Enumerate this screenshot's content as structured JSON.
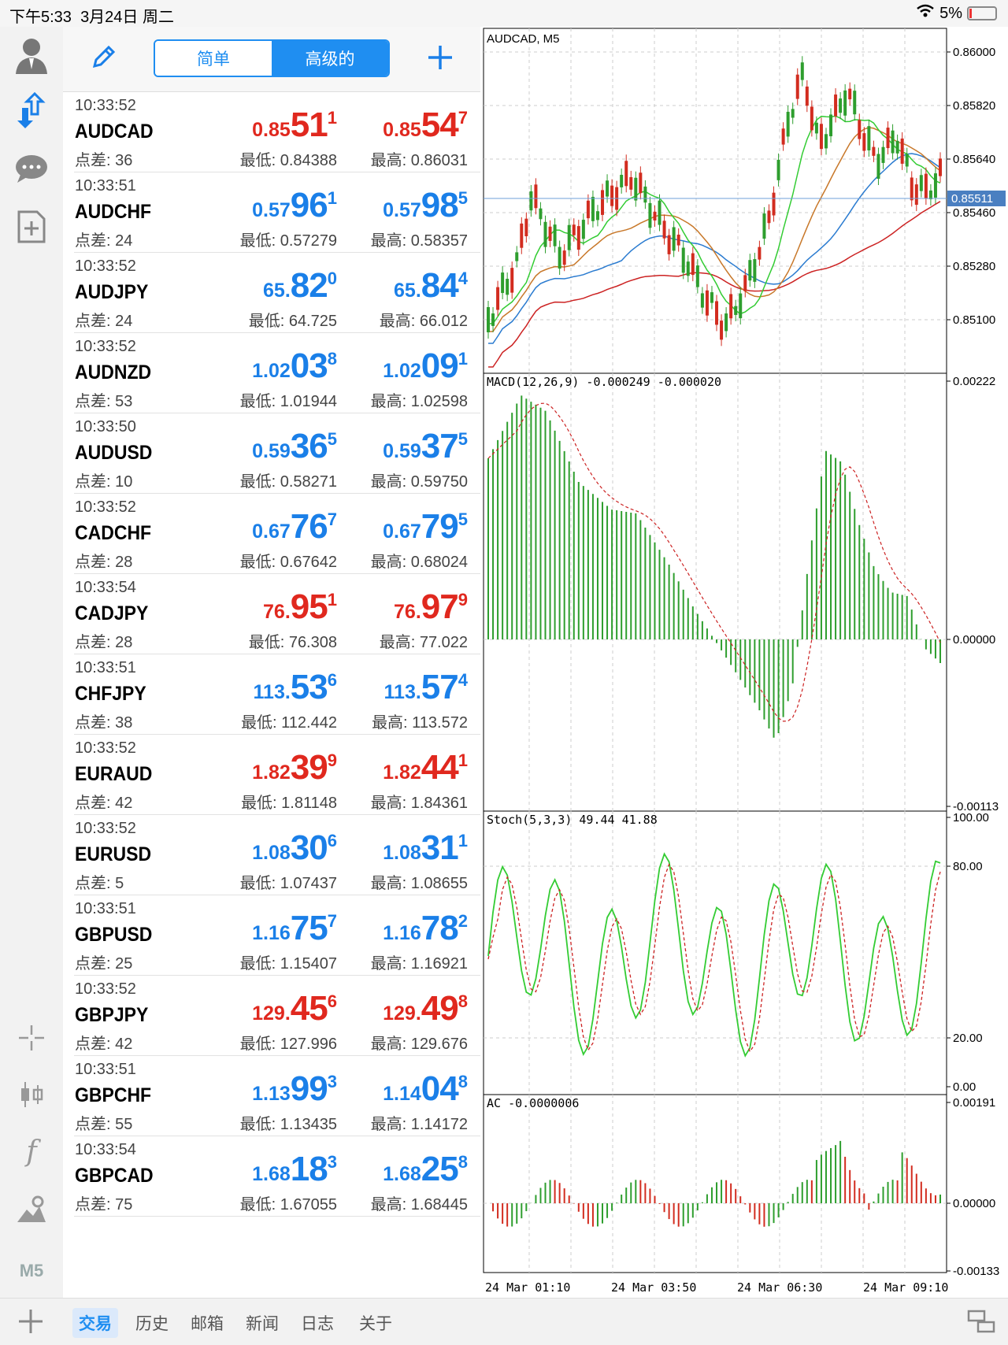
{
  "status_bar": {
    "time": "下午5:33",
    "date": "3月24日 周二",
    "battery": "5%"
  },
  "toolbar": {
    "segment_simple": "简单",
    "segment_advanced": "高级的"
  },
  "quotes": [
    {
      "time": "10:33:52",
      "symbol": "AUDCAD",
      "spread": "点差: 36",
      "bid": {
        "s": "0.85",
        "b": "51",
        "p": "1"
      },
      "ask": {
        "s": "0.85",
        "b": "54",
        "p": "7"
      },
      "low": "最低: 0.84388",
      "high": "最高: 0.86031",
      "color": "red"
    },
    {
      "time": "10:33:51",
      "symbol": "AUDCHF",
      "spread": "点差: 24",
      "bid": {
        "s": "0.57",
        "b": "96",
        "p": "1"
      },
      "ask": {
        "s": "0.57",
        "b": "98",
        "p": "5"
      },
      "low": "最低: 0.57279",
      "high": "最高: 0.58357",
      "color": "blue"
    },
    {
      "time": "10:33:52",
      "symbol": "AUDJPY",
      "spread": "点差: 24",
      "bid": {
        "s": "65.",
        "b": "82",
        "p": "0"
      },
      "ask": {
        "s": "65.",
        "b": "84",
        "p": "4"
      },
      "low": "最低: 64.725",
      "high": "最高: 66.012",
      "color": "blue"
    },
    {
      "time": "10:33:52",
      "symbol": "AUDNZD",
      "spread": "点差: 53",
      "bid": {
        "s": "1.02",
        "b": "03",
        "p": "8"
      },
      "ask": {
        "s": "1.02",
        "b": "09",
        "p": "1"
      },
      "low": "最低: 1.01944",
      "high": "最高: 1.02598",
      "color": "blue"
    },
    {
      "time": "10:33:50",
      "symbol": "AUDUSD",
      "spread": "点差: 10",
      "bid": {
        "s": "0.59",
        "b": "36",
        "p": "5"
      },
      "ask": {
        "s": "0.59",
        "b": "37",
        "p": "5"
      },
      "low": "最低: 0.58271",
      "high": "最高: 0.59750",
      "color": "blue"
    },
    {
      "time": "10:33:52",
      "symbol": "CADCHF",
      "spread": "点差: 28",
      "bid": {
        "s": "0.67",
        "b": "76",
        "p": "7"
      },
      "ask": {
        "s": "0.67",
        "b": "79",
        "p": "5"
      },
      "low": "最低: 0.67642",
      "high": "最高: 0.68024",
      "color": "blue"
    },
    {
      "time": "10:33:54",
      "symbol": "CADJPY",
      "spread": "点差: 28",
      "bid": {
        "s": "76.",
        "b": "95",
        "p": "1"
      },
      "ask": {
        "s": "76.",
        "b": "97",
        "p": "9"
      },
      "low": "最低: 76.308",
      "high": "最高: 77.022",
      "color": "red"
    },
    {
      "time": "10:33:51",
      "symbol": "CHFJPY",
      "spread": "点差: 38",
      "bid": {
        "s": "113.",
        "b": "53",
        "p": "6"
      },
      "ask": {
        "s": "113.",
        "b": "57",
        "p": "4"
      },
      "low": "最低: 112.442",
      "high": "最高: 113.572",
      "color": "blue"
    },
    {
      "time": "10:33:52",
      "symbol": "EURAUD",
      "spread": "点差: 42",
      "bid": {
        "s": "1.82",
        "b": "39",
        "p": "9"
      },
      "ask": {
        "s": "1.82",
        "b": "44",
        "p": "1"
      },
      "low": "最低: 1.81148",
      "high": "最高: 1.84361",
      "color": "red"
    },
    {
      "time": "10:33:52",
      "symbol": "EURUSD",
      "spread": "点差: 5",
      "bid": {
        "s": "1.08",
        "b": "30",
        "p": "6"
      },
      "ask": {
        "s": "1.08",
        "b": "31",
        "p": "1"
      },
      "low": "最低: 1.07437",
      "high": "最高: 1.08655",
      "color": "blue"
    },
    {
      "time": "10:33:51",
      "symbol": "GBPUSD",
      "spread": "点差: 25",
      "bid": {
        "s": "1.16",
        "b": "75",
        "p": "7"
      },
      "ask": {
        "s": "1.16",
        "b": "78",
        "p": "2"
      },
      "low": "最低: 1.15407",
      "high": "最高: 1.16921",
      "color": "blue"
    },
    {
      "time": "10:33:52",
      "symbol": "GBPJPY",
      "spread": "点差: 42",
      "bid": {
        "s": "129.",
        "b": "45",
        "p": "6"
      },
      "ask": {
        "s": "129.",
        "b": "49",
        "p": "8"
      },
      "low": "最低: 127.996",
      "high": "最高: 129.676",
      "color": "red"
    },
    {
      "time": "10:33:51",
      "symbol": "GBPCHF",
      "spread": "点差: 55",
      "bid": {
        "s": "1.13",
        "b": "99",
        "p": "3"
      },
      "ask": {
        "s": "1.14",
        "b": "04",
        "p": "8"
      },
      "low": "最低: 1.13435",
      "high": "最高: 1.14172",
      "color": "blue"
    },
    {
      "time": "10:33:54",
      "symbol": "GBPCAD",
      "spread": "点差: 75",
      "bid": {
        "s": "1.68",
        "b": "18",
        "p": "3"
      },
      "ask": {
        "s": "1.68",
        "b": "25",
        "p": "8"
      },
      "low": "最低: 1.67055",
      "high": "最高: 1.68445",
      "color": "blue"
    }
  ],
  "chart": {
    "symbol_label": "AUDCAD, M5",
    "current_price": "0.85511",
    "price_ticks": [
      "0.86000",
      "0.85820",
      "0.85640",
      "0.85460",
      "0.85280",
      "0.85100"
    ],
    "macd_label": "MACD(12,26,9) -0.000249 -0.000020",
    "macd_ticks": [
      "0.00222",
      "0.00000",
      "-0.00113"
    ],
    "stoch_label": "Stoch(5,3,3) 49.44 41.88",
    "stoch_ticks": [
      "100.00",
      "80.00",
      "20.00",
      "0.00"
    ],
    "ac_label": "AC -0.0000006",
    "ac_ticks": [
      "0.00191",
      "0.00000",
      "-0.00133"
    ],
    "time_labels": [
      "24 Mar 01:10",
      "24 Mar 03:50",
      "24 Mar 06:30",
      "24 Mar 09:10"
    ],
    "colors": {
      "bull": "#2e9e2e",
      "bear": "#d22c1f",
      "ma_fast": "#33cc33",
      "ma_mid": "#c8782a",
      "ma_slow": "#2a7bd0",
      "ma_long": "#cc2222",
      "bid_line": "#6f9fd8"
    }
  },
  "bottom_tabs": [
    "交易",
    "历史",
    "邮箱",
    "新闻",
    "日志",
    "关于"
  ]
}
